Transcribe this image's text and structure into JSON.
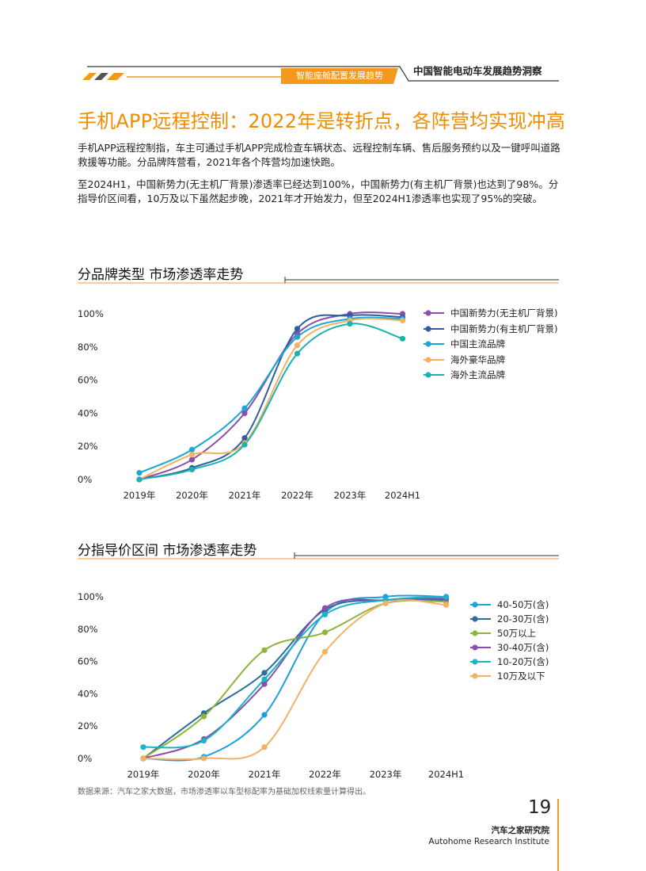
{
  "header": {
    "section": "智能座舱配置发展趋势",
    "report": "中国智能电动车发展趋势洞察"
  },
  "title": "手机APP远程控制：2022年是转折点，各阵营均实现冲高",
  "paragraphs": [
    "手机APP远程控制指，车主可通过手机APP完成检查车辆状态、远程控制车辆、售后服务预约以及一键呼叫道路救援等功能。分品牌阵营看，2021年各个阵营均加速快跑。",
    "至2024H1，中国新势力(无主机厂背景)渗透率已经达到100%，中国新势力(有主机厂背景)也达到了98%。分指导价区间看，10万及以下虽然起步晚，2021年才开始发力，但至2024H1渗透率也实现了95%的突破。"
  ],
  "footer": {
    "source": "数据来源：汽车之家大数据，市场渗透率以车型标配率为基础加权线索量计算得出。",
    "page": "19",
    "institute_cn": "汽车之家研究院",
    "institute_en": "Autohome Research Institute"
  },
  "chart_data": [
    {
      "type": "line",
      "title": "分品牌类型  市场渗透率走势",
      "categories": [
        "2019年",
        "2020年",
        "2021年",
        "2022年",
        "2023年",
        "2024H1"
      ],
      "y_ticks": [
        "0%",
        "20%",
        "40%",
        "60%",
        "80%",
        "100%"
      ],
      "ylim": [
        0,
        100
      ],
      "grid": false,
      "legend_position": "right",
      "series": [
        {
          "name": "中国新势力(无主机厂背景)",
          "color": "#8a4fa6",
          "values": [
            0,
            12,
            40,
            88,
            100,
            100
          ]
        },
        {
          "name": "中国新势力(有主机厂背景)",
          "color": "#2e5e9e",
          "values": [
            0,
            7,
            25,
            91,
            99,
            98
          ]
        },
        {
          "name": "中国主流品牌",
          "color": "#1aa6d8",
          "values": [
            4,
            18,
            43,
            86,
            97,
            97
          ]
        },
        {
          "name": "海外豪华品牌",
          "color": "#f4b163",
          "values": [
            0,
            15,
            22,
            81,
            96,
            96
          ]
        },
        {
          "name": "海外主流品牌",
          "color": "#1bb3b0",
          "values": [
            0,
            6,
            21,
            76,
            94,
            85
          ]
        }
      ]
    },
    {
      "type": "line",
      "title": "分指导价区间  市场渗透率走势",
      "categories": [
        "2019年",
        "2020年",
        "2021年",
        "2022年",
        "2023年",
        "2024H1"
      ],
      "y_ticks": [
        "0%",
        "20%",
        "40%",
        "60%",
        "80%",
        "100%"
      ],
      "ylim": [
        0,
        100
      ],
      "grid": false,
      "legend_position": "right",
      "series": [
        {
          "name": "40-50万(含)",
          "color": "#1f9ee0",
          "values": [
            0,
            1,
            27,
            90,
            100,
            100
          ]
        },
        {
          "name": "20-30万(含)",
          "color": "#2e6aa3",
          "values": [
            0,
            28,
            53,
            92,
            98,
            98
          ]
        },
        {
          "name": "50万以上",
          "color": "#8db63b",
          "values": [
            0,
            26,
            67,
            78,
            96,
            97
          ]
        },
        {
          "name": "30-40万(含)",
          "color": "#8a4fa6",
          "values": [
            0,
            12,
            46,
            93,
            98,
            99
          ]
        },
        {
          "name": "10-20万(含)",
          "color": "#1bb3c8",
          "values": [
            7,
            11,
            49,
            89,
            98,
            100
          ]
        },
        {
          "name": "10万及以下",
          "color": "#f4b163",
          "values": [
            0,
            0,
            7,
            66,
            96,
            95
          ]
        }
      ]
    }
  ]
}
